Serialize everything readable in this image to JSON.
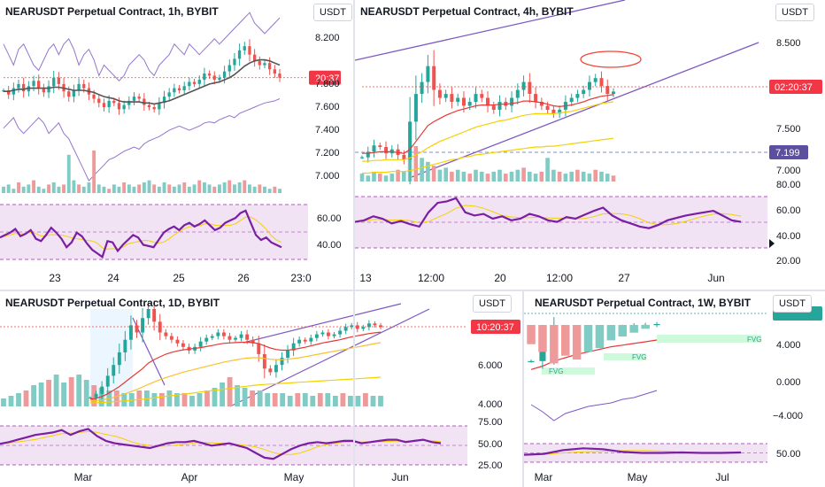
{
  "colors": {
    "up": "#26a69a",
    "down": "#ef5350",
    "rsi_line": "#7b1fa2",
    "rsi_fill": "#e1bee7",
    "channel": "#7e57c2",
    "ma_yellow": "#f5d100",
    "ma_red": "#e53935",
    "ma_gray": "#787b86",
    "price_line": "#f44336",
    "fvg": "#b9f6ca",
    "fvg_text": "#26a69a"
  },
  "chart_data": [
    {
      "id": "p1h",
      "type": "line",
      "title": "NEARUSDT Perpetual Contract, 1h, BYBIT",
      "unit_label": "USDT",
      "y_ticks": [
        "8.200",
        "7.800",
        "7.600",
        "7.400",
        "7.200",
        "7.000"
      ],
      "price_tag": "20:37",
      "x_ticks": [
        "23",
        "24",
        "25",
        "26",
        "23:0"
      ],
      "rsi_ticks": [
        "60.00",
        "40.00"
      ],
      "ylim": [
        6.95,
        8.45
      ],
      "close": [
        7.86,
        7.82,
        7.88,
        7.92,
        7.85,
        7.9,
        7.95,
        7.88,
        7.84,
        7.9,
        7.98,
        7.92,
        7.85,
        7.8,
        7.86,
        7.92,
        7.88,
        7.82,
        7.78,
        7.74,
        7.7,
        7.76,
        7.74,
        7.68,
        7.72,
        7.76,
        7.8,
        7.78,
        7.72,
        7.7,
        7.68,
        7.74,
        7.8,
        7.84,
        7.88,
        7.86,
        7.9,
        7.94,
        7.92,
        7.96,
        8.02,
        8.0,
        7.96,
        7.98,
        8.04,
        8.1,
        8.16,
        8.24,
        8.28,
        8.2,
        8.14,
        8.1,
        8.12,
        8.06,
        8.02,
        7.98
      ],
      "ma": [
        7.85,
        7.85,
        7.86,
        7.87,
        7.87,
        7.88,
        7.88,
        7.88,
        7.88,
        7.88,
        7.89,
        7.89,
        7.88,
        7.87,
        7.86,
        7.86,
        7.86,
        7.85,
        7.84,
        7.82,
        7.8,
        7.79,
        7.78,
        7.76,
        7.75,
        7.75,
        7.75,
        7.75,
        7.74,
        7.74,
        7.73,
        7.74,
        7.75,
        7.76,
        7.78,
        7.8,
        7.82,
        7.84,
        7.86,
        7.88,
        7.9,
        7.92,
        7.93,
        7.94,
        7.96,
        7.98,
        8.01,
        8.05,
        8.09,
        8.12,
        8.14,
        8.15,
        8.15,
        8.14,
        8.12,
        8.1
      ],
      "upper": [
        8.3,
        8.2,
        8.1,
        8.25,
        8.3,
        8.2,
        8.1,
        8.05,
        8.15,
        8.25,
        8.3,
        8.2,
        8.3,
        8.35,
        8.25,
        8.1,
        8.2,
        8.25,
        8.15,
        8.0,
        8.1,
        8.05,
        8.0,
        7.95,
        8.0,
        8.1,
        8.15,
        8.2,
        8.15,
        8.05,
        8.0,
        8.1,
        8.15,
        8.2,
        8.3,
        8.25,
        8.2,
        8.3,
        8.25,
        8.2,
        8.25,
        8.3,
        8.35,
        8.3,
        8.35,
        8.4,
        8.45,
        8.5,
        8.55,
        8.6,
        8.5,
        8.45,
        8.4,
        8.45,
        8.5,
        8.55
      ],
      "lower": [
        7.5,
        7.55,
        7.6,
        7.5,
        7.45,
        7.5,
        7.55,
        7.6,
        7.55,
        7.45,
        7.5,
        7.55,
        7.45,
        7.4,
        7.3,
        7.2,
        7.1,
        7.0,
        7.05,
        7.1,
        7.15,
        7.2,
        7.22,
        7.25,
        7.28,
        7.3,
        7.32,
        7.3,
        7.35,
        7.38,
        7.4,
        7.42,
        7.45,
        7.48,
        7.5,
        7.52,
        7.5,
        7.48,
        7.5,
        7.52,
        7.55,
        7.56,
        7.55,
        7.58,
        7.6,
        7.62,
        7.6,
        7.64,
        7.66,
        7.68,
        7.7,
        7.72,
        7.74,
        7.75,
        7.76,
        7.78
      ],
      "volume": [
        3,
        4,
        2,
        5,
        3,
        4,
        6,
        3,
        2,
        4,
        5,
        3,
        4,
        18,
        6,
        4,
        3,
        5,
        20,
        4,
        3,
        2,
        4,
        3,
        5,
        4,
        3,
        4,
        5,
        6,
        4,
        3,
        5,
        4,
        3,
        4,
        5,
        3,
        4,
        6,
        5,
        4,
        3,
        4,
        5,
        6,
        4,
        5,
        6,
        4,
        3,
        4,
        3,
        2,
        3,
        2
      ],
      "rsi": [
        48,
        50,
        52,
        55,
        49,
        51,
        54,
        47,
        45,
        50,
        56,
        52,
        47,
        40,
        44,
        52,
        49,
        43,
        38,
        35,
        32,
        45,
        44,
        37,
        42,
        46,
        50,
        48,
        42,
        41,
        40,
        46,
        52,
        55,
        57,
        54,
        58,
        60,
        57,
        59,
        62,
        58,
        54,
        56,
        60,
        62,
        64,
        68,
        70,
        60,
        50,
        46,
        48,
        44,
        42,
        40
      ],
      "rsi_lim": [
        30,
        75
      ]
    },
    {
      "id": "p4h",
      "type": "line",
      "title": "NEARUSDT Perpetual Contract, 4h, BYBIT",
      "unit_label": "USDT",
      "y_ticks": [
        "8.500",
        "7.500"
      ],
      "price_tag": "02:20:37",
      "price_tag2": "7.199",
      "y_ticks_low": [
        "7.000",
        "80.00"
      ],
      "x_ticks": [
        "13",
        "12:00",
        "20",
        "12:00",
        "27",
        "Jun"
      ],
      "rsi_ticks": [
        "60.00",
        "40.00",
        "20.00"
      ],
      "ylim": [
        6.9,
        8.8
      ],
      "close": [
        7.15,
        7.22,
        7.3,
        7.28,
        7.2,
        7.25,
        7.18,
        7.12,
        7.6,
        7.95,
        8.1,
        8.3,
        8.0,
        7.9,
        7.95,
        7.85,
        7.9,
        7.8,
        7.85,
        7.95,
        7.9,
        7.8,
        7.75,
        7.85,
        7.8,
        7.9,
        8.0,
        8.1,
        7.95,
        7.85,
        7.8,
        7.75,
        7.7,
        7.75,
        7.85,
        7.9,
        7.95,
        8.0,
        8.1,
        8.15,
        8.05,
        7.95,
        7.98
      ],
      "ma_red": [
        7.2,
        7.2,
        7.21,
        7.22,
        7.22,
        7.22,
        7.21,
        7.2,
        7.25,
        7.35,
        7.45,
        7.55,
        7.6,
        7.64,
        7.68,
        7.71,
        7.74,
        7.76,
        7.78,
        7.8,
        7.81,
        7.81,
        7.81,
        7.82,
        7.82,
        7.83,
        7.84,
        7.86,
        7.86,
        7.85,
        7.84,
        7.82,
        7.8,
        7.79,
        7.8,
        7.81,
        7.83,
        7.85,
        7.88,
        7.9,
        7.92,
        7.93,
        7.94
      ],
      "ma_yellow": [
        7.1,
        7.1,
        7.11,
        7.11,
        7.12,
        7.12,
        7.12,
        7.12,
        7.14,
        7.18,
        7.22,
        7.27,
        7.31,
        7.35,
        7.38,
        7.41,
        7.44,
        7.47,
        7.5,
        7.53,
        7.55,
        7.57,
        7.59,
        7.61,
        7.62,
        7.64,
        7.66,
        7.68,
        7.69,
        7.7,
        7.7,
        7.7,
        7.7,
        7.71,
        7.72,
        7.73,
        7.75,
        7.77,
        7.79,
        7.81,
        7.83,
        7.84,
        7.85
      ],
      "ma_long": [
        6.95,
        6.95,
        6.96,
        6.96,
        6.96,
        6.97,
        6.97,
        6.97,
        6.98,
        7.0,
        7.02,
        7.04,
        7.06,
        7.08,
        7.1,
        7.12,
        7.13,
        7.15,
        7.16,
        7.18,
        7.19,
        7.2,
        7.21,
        7.22,
        7.23,
        7.24,
        7.25,
        7.26,
        7.27,
        7.28,
        7.28,
        7.29,
        7.29,
        7.3,
        7.31,
        7.32,
        7.33,
        7.34,
        7.35,
        7.36,
        7.37,
        7.38,
        7.39
      ],
      "volume": [
        4,
        3,
        5,
        4,
        3,
        4,
        6,
        5,
        14,
        18,
        12,
        10,
        8,
        6,
        7,
        5,
        6,
        5,
        4,
        6,
        5,
        4,
        5,
        6,
        4,
        5,
        6,
        7,
        5,
        4,
        5,
        12,
        6,
        5,
        4,
        5,
        6,
        5,
        4,
        6,
        5,
        4,
        3
      ],
      "rsi": [
        48,
        50,
        55,
        52,
        46,
        49,
        45,
        42,
        60,
        72,
        74,
        78,
        60,
        56,
        58,
        52,
        55,
        50,
        52,
        58,
        55,
        50,
        48,
        54,
        52,
        57,
        62,
        66,
        56,
        50,
        46,
        42,
        40,
        44,
        50,
        53,
        56,
        58,
        60,
        62,
        56,
        50,
        48
      ],
      "rsi_lim": [
        15,
        80
      ]
    },
    {
      "id": "p1d",
      "type": "line",
      "title": "NEARUSDT Perpetual Contract, 1D, BYBIT",
      "unit_label": "USDT",
      "y_ticks": [
        "6.000",
        "4.000"
      ],
      "price_tag": "10:20:37",
      "x_ticks": [
        "Mar",
        "Apr",
        "May",
        "Jun"
      ],
      "rsi_ticks": [
        "75.00",
        "50.00",
        "25.00"
      ],
      "ylim": [
        3.6,
        9.0
      ],
      "close": [
        4.0,
        4.2,
        4.6,
        5.2,
        5.8,
        6.5,
        7.2,
        8.0,
        7.6,
        8.4,
        8.9,
        8.2,
        7.6,
        7.4,
        7.2,
        7.0,
        6.8,
        6.6,
        6.8,
        7.1,
        7.3,
        7.4,
        7.6,
        7.4,
        7.2,
        7.3,
        7.5,
        7.2,
        7.0,
        6.4,
        5.6,
        5.4,
        5.8,
        6.2,
        6.6,
        7.0,
        7.2,
        7.1,
        7.3,
        7.5,
        7.6,
        7.4,
        7.5,
        7.7,
        7.9,
        8.0,
        7.8,
        7.9,
        8.1,
        8.0,
        7.9
      ],
      "ma_red": [
        3.9,
        3.95,
        4.05,
        4.2,
        4.4,
        4.6,
        4.85,
        5.1,
        5.35,
        5.6,
        5.9,
        6.1,
        6.25,
        6.4,
        6.5,
        6.58,
        6.64,
        6.68,
        6.72,
        6.76,
        6.82,
        6.88,
        6.95,
        7.0,
        7.02,
        7.04,
        7.06,
        7.06,
        7.04,
        6.98,
        6.86,
        6.74,
        6.66,
        6.62,
        6.62,
        6.66,
        6.72,
        6.78,
        6.86,
        6.94,
        7.02,
        7.08,
        7.14,
        7.2,
        7.28,
        7.36,
        7.42,
        7.48,
        7.54,
        7.58,
        7.62
      ],
      "ma_yellow": [
        3.8,
        3.82,
        3.86,
        3.92,
        4.0,
        4.1,
        4.2,
        4.32,
        4.44,
        4.58,
        4.72,
        4.86,
        4.98,
        5.1,
        5.2,
        5.3,
        5.4,
        5.48,
        5.56,
        5.64,
        5.72,
        5.8,
        5.88,
        5.96,
        6.02,
        6.08,
        6.14,
        6.18,
        6.2,
        6.2,
        6.16,
        6.12,
        6.1,
        6.1,
        6.12,
        6.16,
        6.2,
        6.26,
        6.32,
        6.38,
        6.44,
        6.5,
        6.56,
        6.62,
        6.68,
        6.74,
        6.8,
        6.86,
        6.92,
        6.98,
        7.04
      ],
      "ma_long": [
        3.7,
        3.71,
        3.72,
        3.74,
        3.76,
        3.78,
        3.81,
        3.84,
        3.87,
        3.9,
        3.94,
        3.98,
        4.02,
        4.06,
        4.1,
        4.14,
        4.18,
        4.22,
        4.26,
        4.3,
        4.34,
        4.38,
        4.42,
        4.46,
        4.5,
        4.54,
        4.58,
        4.62,
        4.66,
        4.7,
        4.72,
        4.74,
        4.76,
        4.78,
        4.8,
        4.82,
        4.84,
        4.86,
        4.88,
        4.9,
        4.92,
        4.94,
        4.96,
        4.98,
        5.0,
        5.02,
        5.04,
        5.06,
        5.08,
        5.1,
        5.12
      ],
      "volume": [
        3,
        4,
        5,
        6,
        8,
        9,
        10,
        12,
        9,
        11,
        12,
        10,
        8,
        7,
        6,
        6,
        5,
        5,
        6,
        6,
        5,
        5,
        6,
        5,
        5,
        4,
        5,
        6,
        7,
        9,
        11,
        8,
        7,
        6,
        6,
        5,
        5,
        5,
        4,
        5,
        5,
        4,
        5,
        5,
        4,
        5,
        4,
        4,
        5,
        4,
        4
      ],
      "rsi": [
        55,
        58,
        62,
        66,
        70,
        72,
        74,
        78,
        70,
        76,
        80,
        68,
        60,
        56,
        54,
        52,
        50,
        48,
        52,
        56,
        58,
        58,
        60,
        56,
        52,
        54,
        56,
        52,
        48,
        40,
        32,
        30,
        38,
        46,
        52,
        56,
        58,
        56,
        58,
        60,
        60,
        56,
        58,
        60,
        62,
        62,
        58,
        60,
        62,
        58,
        56
      ],
      "rsi_lim": [
        20,
        85
      ]
    },
    {
      "id": "p1w",
      "type": "line",
      "title": "NEARUSDT Perpetual Contract, 1W, BYBIT",
      "unit_label": "USDT",
      "y_ticks": [
        "4.000",
        "0.000",
        "−4.000"
      ],
      "rsi_ticks": [
        "50.00"
      ],
      "x_ticks": [
        "Mar",
        "May",
        "Jul"
      ],
      "fvg_labels": [
        "FVG",
        "FVG",
        "FVG"
      ],
      "ylim": [
        -6.0,
        10.0
      ],
      "close": [
        3.6,
        4.8,
        7.2,
        6.8,
        7.2,
        6.6,
        7.0,
        7.4,
        7.6,
        7.8,
        7.9,
        8.0
      ],
      "ma": [
        2.6,
        3.0,
        3.6,
        4.0,
        4.4,
        4.7,
        5.0,
        5.3,
        5.5,
        5.7,
        5.9,
        6.1
      ],
      "hist": [
        -3.0,
        -3.4,
        -4.0,
        -3.6,
        -3.8,
        -3.4,
        -3.2,
        -2.8,
        -2.6,
        -2.4,
        -2.2,
        -2.0
      ],
      "hist_line": [
        -2.8,
        -3.6,
        -4.6,
        -3.8,
        -3.4,
        -3.0,
        -2.8,
        -2.6,
        -2.2,
        -2.0,
        -1.6,
        -1.2
      ],
      "rsi": [
        46,
        48,
        56,
        60,
        58,
        52,
        50,
        50,
        51,
        50,
        50,
        51
      ],
      "rsi_lim": [
        30,
        70
      ]
    }
  ]
}
